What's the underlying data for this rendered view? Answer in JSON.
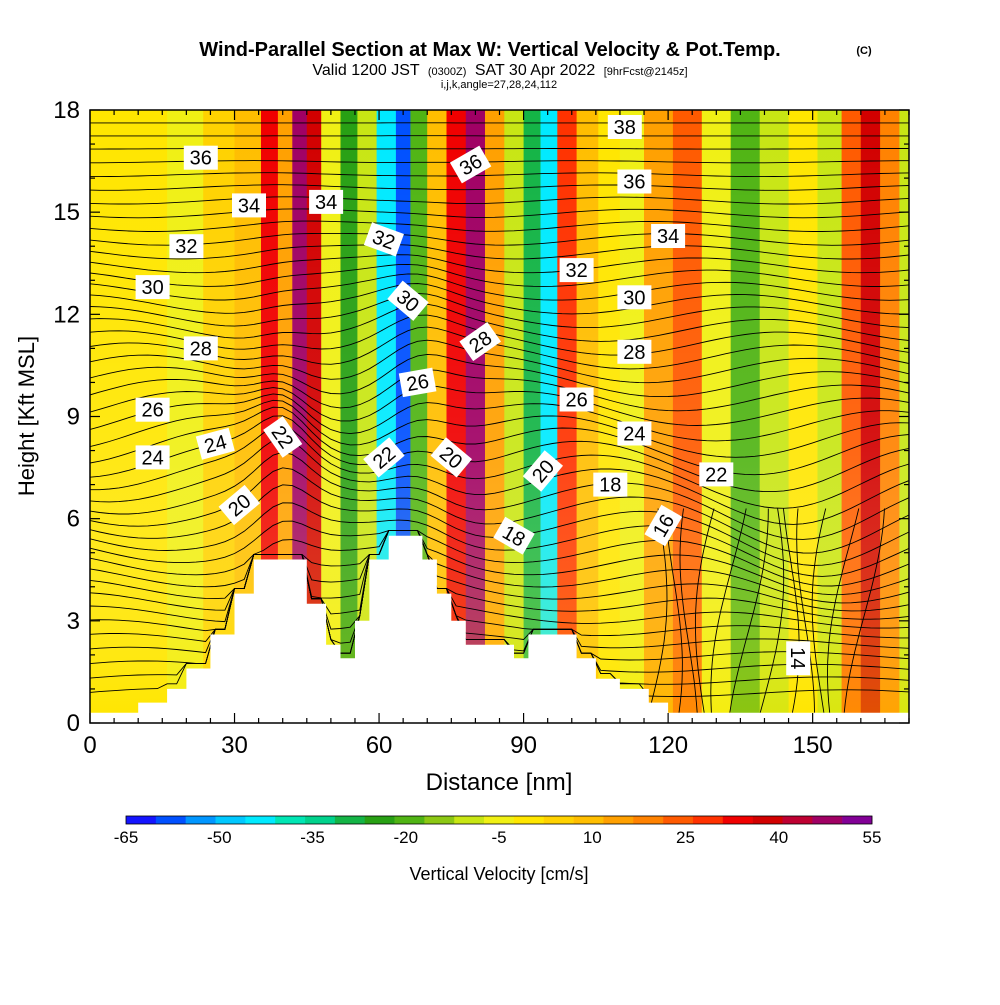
{
  "chart_data": {
    "type": "heatmap",
    "title": {
      "main": "Wind-Parallel Section at Max W: Vertical Velocity & Pot.Temp.",
      "copyright": "(C)",
      "valid": "Valid 1200 JST",
      "utc": "(0300Z)",
      "date": "SAT 30 Apr 2022",
      "forecast": "[9hrFcst@2145z]",
      "indices": "i,j,k,angle=27,28,24,112"
    },
    "xlabel": "Distance [nm]",
    "ylabel": "Height [Kft MSL]",
    "xlim": [
      0,
      170
    ],
    "ylim": [
      0,
      18
    ],
    "xticks": [
      0,
      30,
      60,
      90,
      120,
      150
    ],
    "yticks": [
      0,
      3,
      6,
      9,
      12,
      15,
      18
    ],
    "colorbar": {
      "label": "Vertical Velocity [cm/s]",
      "ticks": [
        -65,
        -50,
        -35,
        -20,
        -5,
        10,
        25,
        40,
        55
      ],
      "colors": [
        "#1414ff",
        "#0050ff",
        "#0096ff",
        "#00c8ff",
        "#00eaff",
        "#00e6b4",
        "#00d28c",
        "#14b446",
        "#28a014",
        "#50b414",
        "#8cc814",
        "#c8e614",
        "#f0f014",
        "#ffe600",
        "#ffd200",
        "#ffbe00",
        "#ffa000",
        "#ff8200",
        "#ff5a00",
        "#ff3200",
        "#f00000",
        "#d20000",
        "#be0032",
        "#a00064",
        "#820096"
      ]
    },
    "vertical_velocity_columns": [
      {
        "x": 5,
        "w": 0
      },
      {
        "x": 12,
        "w": 2
      },
      {
        "x": 20,
        "w": -4
      },
      {
        "x": 27,
        "w": 4
      },
      {
        "x": 33,
        "w": 8
      },
      {
        "x": 38,
        "w": 35
      },
      {
        "x": 40,
        "w": 12
      },
      {
        "x": 44,
        "w": 50
      },
      {
        "x": 46,
        "w": 40
      },
      {
        "x": 50,
        "w": -5
      },
      {
        "x": 54,
        "w": -25
      },
      {
        "x": 57,
        "w": -8
      },
      {
        "x": 62,
        "w": -45
      },
      {
        "x": 65,
        "w": -60
      },
      {
        "x": 68,
        "w": -20
      },
      {
        "x": 72,
        "w": 8
      },
      {
        "x": 76,
        "w": 35
      },
      {
        "x": 80,
        "w": 50
      },
      {
        "x": 84,
        "w": 15
      },
      {
        "x": 88,
        "w": -10
      },
      {
        "x": 92,
        "w": -28
      },
      {
        "x": 95,
        "w": -45
      },
      {
        "x": 99,
        "w": 30
      },
      {
        "x": 103,
        "w": 8
      },
      {
        "x": 108,
        "w": 0
      },
      {
        "x": 112,
        "w": -5
      },
      {
        "x": 118,
        "w": 12
      },
      {
        "x": 124,
        "w": 25
      },
      {
        "x": 130,
        "w": -5
      },
      {
        "x": 136,
        "w": -18
      },
      {
        "x": 142,
        "w": -10
      },
      {
        "x": 148,
        "w": 2
      },
      {
        "x": 154,
        "w": -8
      },
      {
        "x": 158,
        "w": 25
      },
      {
        "x": 162,
        "w": 40
      },
      {
        "x": 166,
        "w": 20
      },
      {
        "x": 170,
        "w": -10
      }
    ],
    "terrain": [
      [
        0,
        0.3
      ],
      [
        10,
        0.3
      ],
      [
        10,
        0.6
      ],
      [
        16,
        0.6
      ],
      [
        16,
        1.0
      ],
      [
        20,
        1.0
      ],
      [
        20,
        1.6
      ],
      [
        25,
        1.6
      ],
      [
        25,
        2.6
      ],
      [
        30,
        2.6
      ],
      [
        30,
        3.8
      ],
      [
        34,
        3.8
      ],
      [
        34,
        4.8
      ],
      [
        45,
        4.8
      ],
      [
        45,
        3.5
      ],
      [
        49,
        3.5
      ],
      [
        49,
        2.3
      ],
      [
        52,
        2.3
      ],
      [
        52,
        1.9
      ],
      [
        55,
        1.9
      ],
      [
        55,
        3.0
      ],
      [
        58,
        3.0
      ],
      [
        58,
        4.8
      ],
      [
        62,
        4.8
      ],
      [
        62,
        5.5
      ],
      [
        69,
        5.5
      ],
      [
        69,
        4.8
      ],
      [
        72,
        4.8
      ],
      [
        72,
        3.8
      ],
      [
        75,
        3.8
      ],
      [
        75,
        3.0
      ],
      [
        78,
        3.0
      ],
      [
        78,
        2.3
      ],
      [
        88,
        2.3
      ],
      [
        88,
        1.9
      ],
      [
        91,
        1.9
      ],
      [
        91,
        2.6
      ],
      [
        101,
        2.6
      ],
      [
        101,
        1.9
      ],
      [
        105,
        1.9
      ],
      [
        105,
        1.3
      ],
      [
        110,
        1.3
      ],
      [
        110,
        1.0
      ],
      [
        116,
        1.0
      ],
      [
        116,
        0.6
      ],
      [
        120,
        0.6
      ],
      [
        120,
        0.3
      ],
      [
        170,
        0.3
      ]
    ],
    "contour_labels": [
      {
        "text": "36",
        "x": 23,
        "y": 16.6,
        "angle": 0
      },
      {
        "text": "34",
        "x": 33,
        "y": 15.2,
        "angle": 0
      },
      {
        "text": "32",
        "x": 20,
        "y": 14.0,
        "angle": 0
      },
      {
        "text": "30",
        "x": 13,
        "y": 12.8,
        "angle": 0
      },
      {
        "text": "28",
        "x": 23,
        "y": 11.0,
        "angle": 0
      },
      {
        "text": "26",
        "x": 13,
        "y": 9.2,
        "angle": 0
      },
      {
        "text": "24",
        "x": 13,
        "y": 7.8,
        "angle": 0
      },
      {
        "text": "24",
        "x": 26,
        "y": 8.2,
        "angle": -15
      },
      {
        "text": "22",
        "x": 40,
        "y": 8.4,
        "angle": 55
      },
      {
        "text": "20",
        "x": 31,
        "y": 6.4,
        "angle": -40
      },
      {
        "text": "34",
        "x": 49,
        "y": 15.3,
        "angle": 0
      },
      {
        "text": "32",
        "x": 61,
        "y": 14.2,
        "angle": 20
      },
      {
        "text": "30",
        "x": 66,
        "y": 12.4,
        "angle": 40
      },
      {
        "text": "26",
        "x": 68,
        "y": 10.0,
        "angle": -10
      },
      {
        "text": "22",
        "x": 61,
        "y": 7.8,
        "angle": -40
      },
      {
        "text": "20",
        "x": 75,
        "y": 7.8,
        "angle": 40
      },
      {
        "text": "36",
        "x": 79,
        "y": 16.4,
        "angle": -30
      },
      {
        "text": "28",
        "x": 81,
        "y": 11.2,
        "angle": -35
      },
      {
        "text": "20",
        "x": 94,
        "y": 7.4,
        "angle": -50
      },
      {
        "text": "18",
        "x": 88,
        "y": 5.5,
        "angle": 30
      },
      {
        "text": "32",
        "x": 101,
        "y": 13.3,
        "angle": 0
      },
      {
        "text": "26",
        "x": 101,
        "y": 9.5,
        "angle": 0
      },
      {
        "text": "38",
        "x": 111,
        "y": 17.5,
        "angle": 0
      },
      {
        "text": "36",
        "x": 113,
        "y": 15.9,
        "angle": 0
      },
      {
        "text": "34",
        "x": 120,
        "y": 14.3,
        "angle": 0
      },
      {
        "text": "30",
        "x": 113,
        "y": 12.5,
        "angle": 0
      },
      {
        "text": "28",
        "x": 113,
        "y": 10.9,
        "angle": 0
      },
      {
        "text": "24",
        "x": 113,
        "y": 8.5,
        "angle": 0
      },
      {
        "text": "18",
        "x": 108,
        "y": 7.0,
        "angle": 0
      },
      {
        "text": "16",
        "x": 119,
        "y": 5.8,
        "angle": -60
      },
      {
        "text": "22",
        "x": 130,
        "y": 7.3,
        "angle": 0
      },
      {
        "text": "14",
        "x": 147,
        "y": 1.9,
        "angle": 90
      }
    ]
  }
}
